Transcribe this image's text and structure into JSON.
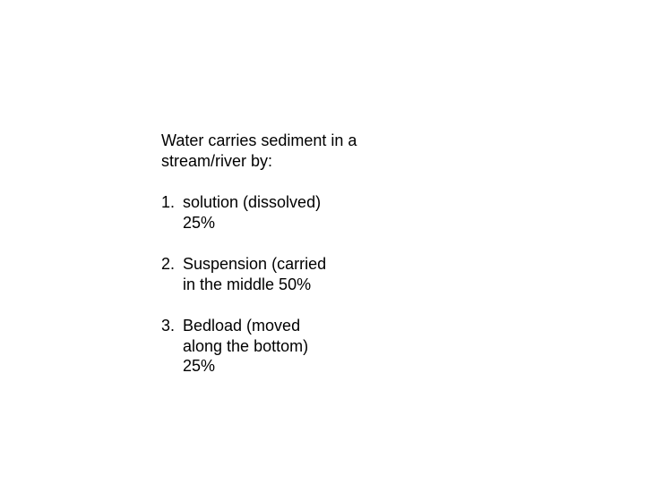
{
  "text_color": "#000000",
  "background_color": "#ffffff",
  "font_size": 18,
  "font_family": "Arial",
  "intro": "Water carries sediment in a stream/river by:",
  "items": [
    {
      "num": "1.",
      "line1": "solution (dissolved)",
      "line2": "25%"
    },
    {
      "num": "2.",
      "line1": "Suspension (carried",
      "line2": "in the middle  50%"
    },
    {
      "num": "3.",
      "line1": "Bedload (moved",
      "line2": "along the bottom)",
      "line3": "25%"
    }
  ]
}
